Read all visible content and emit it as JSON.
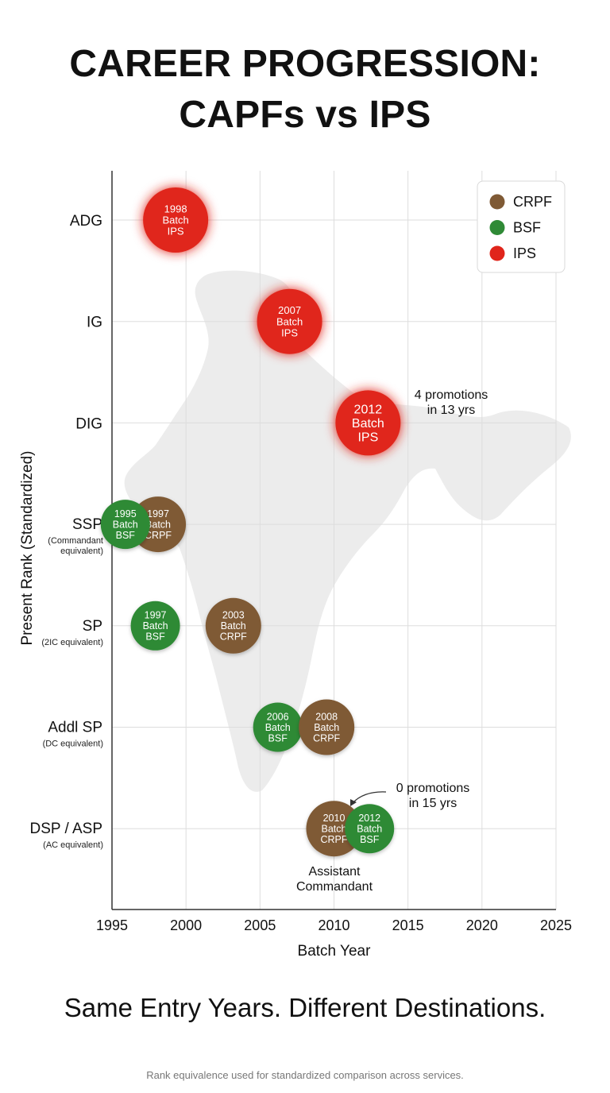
{
  "title_line1": "CAREER PROGRESSION:",
  "title_line2": "CAPFs vs IPS",
  "tagline": "Same Entry Years. Different Destinations.",
  "footnote": "Rank equivalence used for standardized comparison across services.",
  "colors": {
    "CRPF": "#7f5a35",
    "BSF": "#2f8a36",
    "IPS": "#e0251b",
    "map": "#ececec",
    "grid": "#dddddd"
  },
  "chart_data": {
    "type": "scatter",
    "title": "CAREER PROGRESSION: CAPFs vs IPS",
    "xlabel": "Batch Year",
    "ylabel": "Present Rank (Standardized)",
    "xlim": [
      1995,
      2025
    ],
    "xticks": [
      "1995",
      "2000",
      "2005",
      "2010",
      "2015",
      "2020",
      "2025"
    ],
    "ranks": [
      {
        "label": "ADG",
        "sub": ""
      },
      {
        "label": "IG",
        "sub": ""
      },
      {
        "label": "DIG",
        "sub": ""
      },
      {
        "label": "SSP",
        "sub": "(Commandant\nequivalent)"
      },
      {
        "label": "SP",
        "sub": "(2IC equivalent)"
      },
      {
        "label": "Addl SP",
        "sub": "(DC equivalent)"
      },
      {
        "label": "DSP / ASP",
        "sub": "(AC equivalent)"
      }
    ],
    "legend": [
      "CRPF",
      "BSF",
      "IPS"
    ],
    "series": [
      {
        "name": "IPS",
        "points": [
          {
            "year": 1998,
            "rank": "ADG",
            "label": "1998\nBatch\nIPS"
          },
          {
            "year": 2007,
            "rank": "IG",
            "label": "2007\nBatch\nIPS"
          },
          {
            "year": 2012,
            "rank": "DIG",
            "label": "2012\nBatch\nIPS"
          }
        ]
      },
      {
        "name": "BSF",
        "points": [
          {
            "year": 1995,
            "rank": "SSP",
            "label": "1995\nBatch\nBSF"
          },
          {
            "year": 1997,
            "rank": "SP",
            "label": "1997\nBatch\nBSF"
          },
          {
            "year": 2006,
            "rank": "Addl SP",
            "label": "2006\nBatch\nBSF"
          },
          {
            "year": 2012,
            "rank": "DSP / ASP",
            "label": "2012\nBatch\nBSF"
          }
        ]
      },
      {
        "name": "CRPF",
        "points": [
          {
            "year": 1997,
            "rank": "SSP",
            "label": "1997\nBatch\nCRPF"
          },
          {
            "year": 2003,
            "rank": "SP",
            "label": "2003\nBatch\nCRPF"
          },
          {
            "year": 2008,
            "rank": "Addl SP",
            "label": "2008\nBatch\nCRPF"
          },
          {
            "year": 2010,
            "rank": "DSP / ASP",
            "label": "2010\nBatch\nCRPF"
          }
        ]
      }
    ],
    "annotations": [
      {
        "text": "4 promotions\nin 13 yrs",
        "near": "2012 Batch IPS"
      },
      {
        "text": "0 promotions\nin 15 yrs",
        "near": "2010 Batch CRPF"
      },
      {
        "text": "Assistant\nCommandant",
        "near": "2010 Batch CRPF"
      }
    ]
  }
}
